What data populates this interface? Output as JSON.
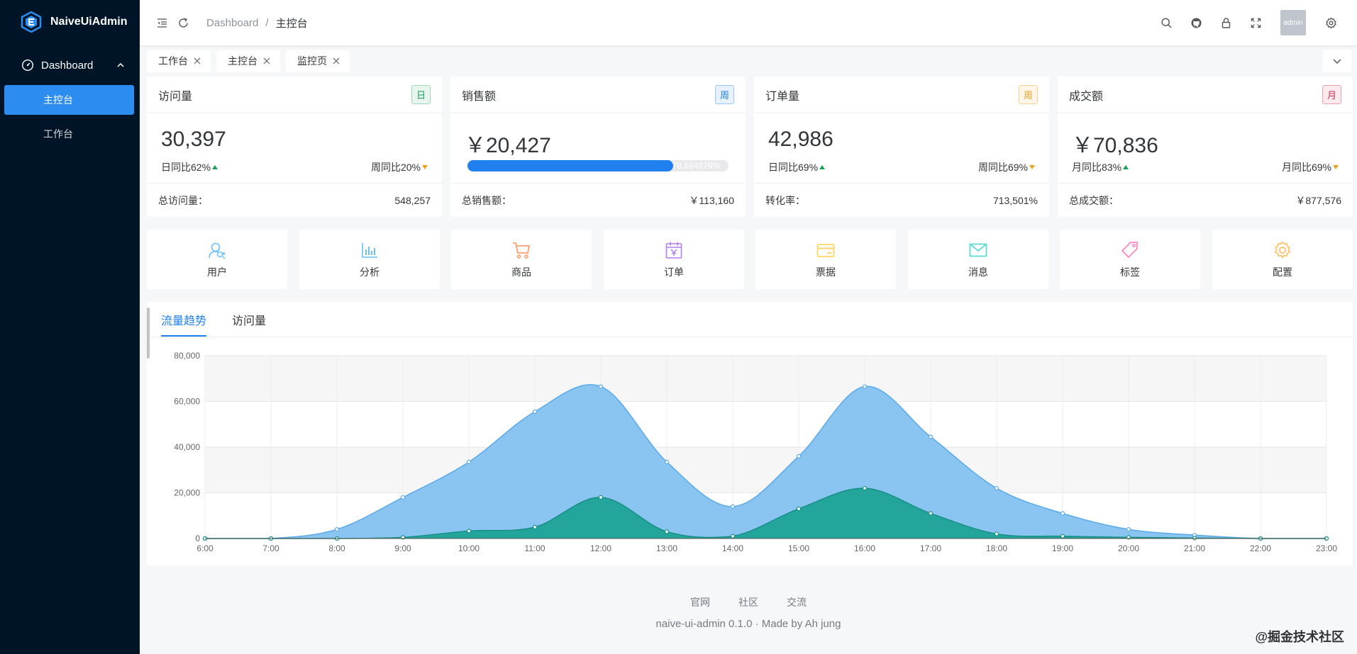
{
  "app": {
    "name": "NaiveUiAdmin"
  },
  "sidebar": {
    "group": "Dashboard",
    "items": [
      {
        "label": "主控台",
        "active": true
      },
      {
        "label": "工作台",
        "active": false
      }
    ]
  },
  "header": {
    "breadcrumb": [
      "Dashboard",
      "/",
      "主控台"
    ],
    "avatar_text": "admin"
  },
  "tabs": [
    "工作台",
    "主控台",
    "监控页"
  ],
  "cards": [
    {
      "title": "访问量",
      "tag": "日",
      "tag_color": "#18a058",
      "tag_bg": "#e7f5ee",
      "value": "30,397",
      "left": "日同比62%",
      "right": "周同比20%",
      "foot_label": "总访问量：",
      "foot_value": "548,257"
    },
    {
      "title": "销售额",
      "tag": "周",
      "tag_color": "#2080f0",
      "tag_bg": "#e8f2fe",
      "value": "￥20,427",
      "progress": 78.684876,
      "progress_text": "78.684876%",
      "foot_label": "总销售额：",
      "foot_value": "￥113,160"
    },
    {
      "title": "订单量",
      "tag": "周",
      "tag_color": "#f0a020",
      "tag_bg": "#fef6e9",
      "value": "42,986",
      "left": "日同比69%",
      "right": "周同比69%",
      "foot_label": "转化率：",
      "foot_value": "713,501%"
    },
    {
      "title": "成交额",
      "tag": "月",
      "tag_color": "#d03050",
      "tag_bg": "#fbeaee",
      "value": "￥70,836",
      "left": "月同比83%",
      "right": "月同比69%",
      "foot_label": "总成交额：",
      "foot_value": "￥877,576"
    }
  ],
  "quick": [
    {
      "label": "用户",
      "icon": "user-add-icon",
      "color": "#69c0ff"
    },
    {
      "label": "分析",
      "icon": "bar-chart-icon",
      "color": "#69c0ff"
    },
    {
      "label": "商品",
      "icon": "shopping-cart-icon",
      "color": "#ff9c6e"
    },
    {
      "label": "订单",
      "icon": "calendar-icon",
      "color": "#b37feb"
    },
    {
      "label": "票据",
      "icon": "credit-card-icon",
      "color": "#ffd666"
    },
    {
      "label": "消息",
      "icon": "mail-icon",
      "color": "#5cdbd3"
    },
    {
      "label": "标签",
      "icon": "tag-icon",
      "color": "#ff85c0"
    },
    {
      "label": "配置",
      "icon": "settings-icon",
      "color": "#ffc069"
    }
  ],
  "chart_tabs": [
    "流量趋势",
    "访问量"
  ],
  "chart_data": {
    "type": "area",
    "x": [
      "6:00",
      "7:00",
      "8:00",
      "9:00",
      "10:00",
      "11:00",
      "12:00",
      "13:00",
      "14:00",
      "15:00",
      "16:00",
      "17:00",
      "18:00",
      "19:00",
      "20:00",
      "21:00",
      "22:00",
      "23:00"
    ],
    "ylim": [
      0,
      80000
    ],
    "yticks": [
      "0",
      "20,000",
      "40,000",
      "60,000",
      "80,000"
    ],
    "ytick_values": [
      0,
      20000,
      40000,
      60000,
      80000
    ],
    "series": [
      {
        "values": [
          0,
          0,
          4000,
          18000,
          33500,
          55500,
          66500,
          33500,
          14000,
          36000,
          66500,
          44500,
          22000,
          11000,
          4000,
          1500,
          0,
          0
        ],
        "fill": "#8ac4f0",
        "stroke": "#5aaaeb"
      },
      {
        "values": [
          0,
          0,
          0,
          500,
          3300,
          5000,
          18000,
          3000,
          1000,
          13000,
          22000,
          11000,
          2000,
          1000,
          500,
          200,
          0,
          0
        ],
        "fill": "#23a59c",
        "stroke": "#178f86"
      }
    ],
    "grid": true
  },
  "footer": {
    "links": [
      "官网",
      "社区",
      "交流"
    ],
    "copyright": "naive-ui-admin 0.1.0 · Made by Ah jung"
  },
  "watermark": "@掘金技术社区"
}
